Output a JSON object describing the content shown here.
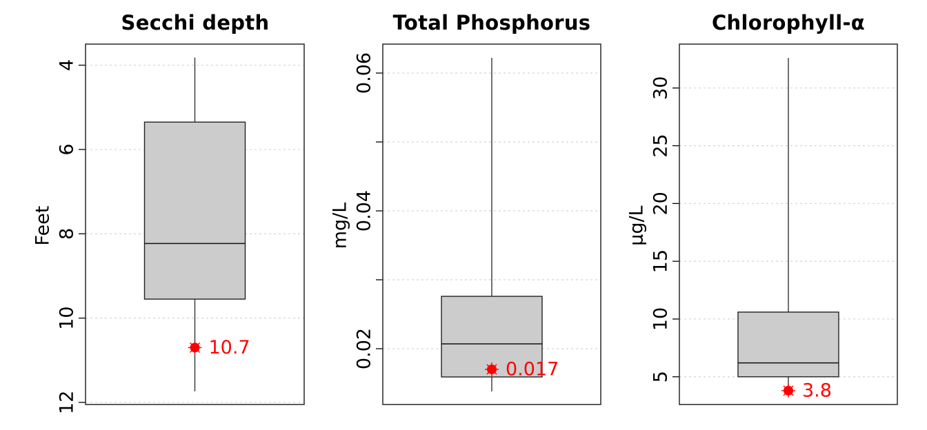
{
  "colors": {
    "box_fill": "#cccccc",
    "frame": "#333333",
    "grid": "#d3d3d3",
    "highlight": "#ff0000"
  },
  "chart_data": [
    {
      "type": "box",
      "title": "Secchi depth",
      "ylabel": "Feet",
      "y_reversed": true,
      "ylim": [
        3.5,
        12.05
      ],
      "yticks": [
        4,
        6,
        8,
        10,
        12
      ],
      "ytick_labels": [
        "4",
        "6",
        "8",
        "10",
        "12"
      ],
      "grid": true,
      "box": {
        "whisker_low": 3.82,
        "q1": 5.35,
        "median": 8.23,
        "q3": 9.55,
        "whisker_high": 11.74
      },
      "highlight": {
        "value": 10.7,
        "label": "10.7"
      }
    },
    {
      "type": "box",
      "title": "Total Phosphorus",
      "ylabel": "mg/L",
      "y_reversed": false,
      "ylim": [
        0.0119,
        0.0642
      ],
      "yticks": [
        0.02,
        0.03,
        0.04,
        0.05,
        0.06
      ],
      "ytick_labels": [
        "0.02",
        "",
        "0.04",
        "",
        "0.06"
      ],
      "grid": true,
      "box": {
        "whisker_low": 0.0138,
        "q1": 0.0159,
        "median": 0.0207,
        "q3": 0.0276,
        "whisker_high": 0.0622
      },
      "highlight": {
        "value": 0.017,
        "label": "0.017"
      }
    },
    {
      "type": "box",
      "title": "Chlorophyll-α",
      "ylabel": "µg/L",
      "y_reversed": false,
      "ylim": [
        2.6,
        33.8
      ],
      "yticks": [
        5,
        10,
        15,
        20,
        25,
        30
      ],
      "ytick_labels": [
        "5",
        "10",
        "15",
        "20",
        "25",
        "30"
      ],
      "grid": true,
      "box": {
        "whisker_low": 3.8,
        "q1": 5.0,
        "median": 6.2,
        "q3": 10.6,
        "whisker_high": 32.6
      },
      "highlight": {
        "value": 3.8,
        "label": "3.8"
      }
    }
  ]
}
